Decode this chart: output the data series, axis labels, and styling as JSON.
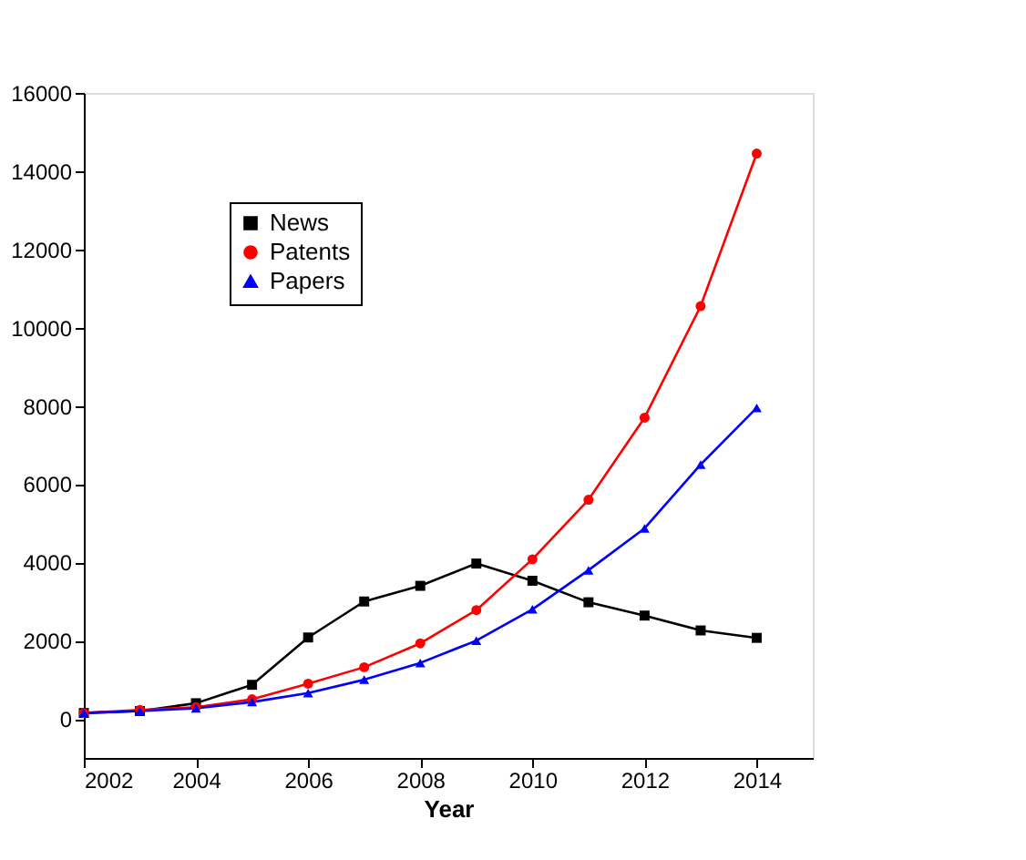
{
  "chart_data": {
    "type": "line",
    "xlabel": "Year",
    "x": [
      2002,
      2003,
      2004,
      2005,
      2006,
      2007,
      2008,
      2009,
      2010,
      2011,
      2012,
      2013,
      2014
    ],
    "series": [
      {
        "name": "News",
        "color": "#000000",
        "marker": "square",
        "values": [
          150,
          200,
          400,
          870,
          2080,
          3000,
          3400,
          3970,
          3530,
          2980,
          2640,
          2260,
          2070
        ]
      },
      {
        "name": "Patents",
        "color": "#ff0000",
        "marker": "circle",
        "values": [
          150,
          230,
          300,
          500,
          900,
          1320,
          1930,
          2780,
          4080,
          5600,
          7700,
          10550,
          14450
        ]
      },
      {
        "name": "Papers",
        "color": "#0000ff",
        "marker": "triangle",
        "values": [
          150,
          200,
          270,
          430,
          660,
          1000,
          1430,
          2000,
          2800,
          3800,
          4870,
          6500,
          7950
        ]
      }
    ],
    "xlim": [
      2002,
      2015
    ],
    "xticks": [
      2002,
      2004,
      2006,
      2008,
      2010,
      2012,
      2014
    ],
    "ylim": [
      -1000,
      16000
    ],
    "yticks": [
      0,
      2000,
      4000,
      6000,
      8000,
      10000,
      12000,
      14000,
      16000
    ],
    "grid": false,
    "legend": "top left",
    "line_style": "solid"
  }
}
